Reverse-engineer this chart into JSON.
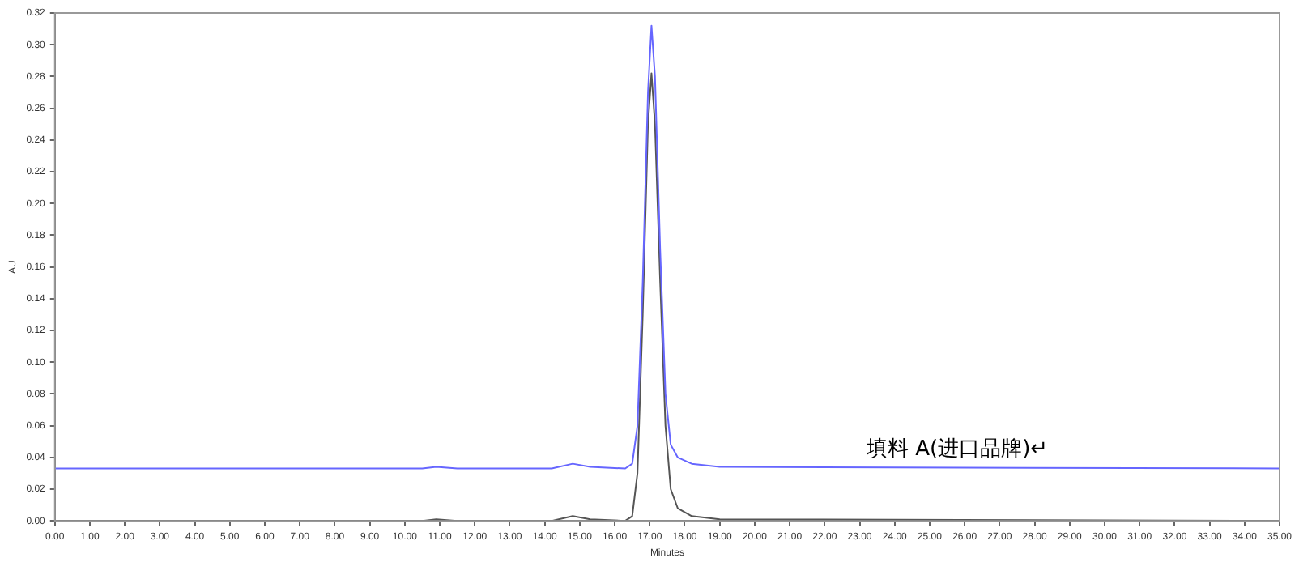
{
  "chart_data": {
    "type": "line",
    "xlabel": "Minutes",
    "ylabel": "AU",
    "xlim": [
      0,
      35
    ],
    "ylim": [
      0,
      0.32
    ],
    "xticks": [
      {
        "value": 0,
        "label": "0.00"
      },
      {
        "value": 1,
        "label": "1.00"
      },
      {
        "value": 2,
        "label": "2.00"
      },
      {
        "value": 3,
        "label": "3.00"
      },
      {
        "value": 4,
        "label": "4.00"
      },
      {
        "value": 5,
        "label": "5.00"
      },
      {
        "value": 6,
        "label": "6.00"
      },
      {
        "value": 7,
        "label": "7.00"
      },
      {
        "value": 8,
        "label": "8.00"
      },
      {
        "value": 9,
        "label": "9.00"
      },
      {
        "value": 10,
        "label": "10.00"
      },
      {
        "value": 11,
        "label": "11.00"
      },
      {
        "value": 12,
        "label": "12.00"
      },
      {
        "value": 13,
        "label": "13.00"
      },
      {
        "value": 14,
        "label": "14.00"
      },
      {
        "value": 15,
        "label": "15.00"
      },
      {
        "value": 16,
        "label": "16.00"
      },
      {
        "value": 17,
        "label": "17.00"
      },
      {
        "value": 18,
        "label": "18.00"
      },
      {
        "value": 19,
        "label": "19.00"
      },
      {
        "value": 20,
        "label": "20.00"
      },
      {
        "value": 21,
        "label": "21.00"
      },
      {
        "value": 22,
        "label": "22.00"
      },
      {
        "value": 23,
        "label": "23.00"
      },
      {
        "value": 24,
        "label": "24.00"
      },
      {
        "value": 25,
        "label": "25.00"
      },
      {
        "value": 26,
        "label": "26.00"
      },
      {
        "value": 27,
        "label": "27.00"
      },
      {
        "value": 28,
        "label": "28.00"
      },
      {
        "value": 29,
        "label": "29.00"
      },
      {
        "value": 30,
        "label": "30.00"
      },
      {
        "value": 31,
        "label": "31.00"
      },
      {
        "value": 32,
        "label": "32.00"
      },
      {
        "value": 33,
        "label": "33.00"
      },
      {
        "value": 34,
        "label": "34.00"
      },
      {
        "value": 35,
        "label": "35.00"
      }
    ],
    "yticks": [
      {
        "value": 0,
        "label": "0.00"
      },
      {
        "value": 0.02,
        "label": "0.02"
      },
      {
        "value": 0.04,
        "label": "0.04"
      },
      {
        "value": 0.06,
        "label": "0.06"
      },
      {
        "value": 0.08,
        "label": "0.08"
      },
      {
        "value": 0.1,
        "label": "0.10"
      },
      {
        "value": 0.12,
        "label": "0.12"
      },
      {
        "value": 0.14,
        "label": "0.14"
      },
      {
        "value": 0.16,
        "label": "0.16"
      },
      {
        "value": 0.18,
        "label": "0.18"
      },
      {
        "value": 0.2,
        "label": "0.20"
      },
      {
        "value": 0.22,
        "label": "0.22"
      },
      {
        "value": 0.24,
        "label": "0.24"
      },
      {
        "value": 0.26,
        "label": "0.26"
      },
      {
        "value": 0.28,
        "label": "0.28"
      },
      {
        "value": 0.3,
        "label": "0.30"
      },
      {
        "value": 0.32,
        "label": "0.32"
      }
    ],
    "marker": "none",
    "legend": false,
    "grid": false,
    "series": [
      {
        "name": "填料 A(进口品牌)↵",
        "color": "#6666ff",
        "x": [
          0,
          10.5,
          10.9,
          11.5,
          14.2,
          14.8,
          15.3,
          16.3,
          16.5,
          16.65,
          16.8,
          16.95,
          17.05,
          17.15,
          17.3,
          17.45,
          17.6,
          17.8,
          18.2,
          19,
          35
        ],
        "values": [
          0.033,
          0.033,
          0.034,
          0.033,
          0.033,
          0.036,
          0.034,
          0.033,
          0.036,
          0.06,
          0.15,
          0.27,
          0.312,
          0.28,
          0.17,
          0.08,
          0.048,
          0.04,
          0.036,
          0.034,
          0.033
        ]
      },
      {
        "color": "#555555",
        "x": [
          0,
          10.5,
          10.9,
          11.5,
          14.2,
          14.8,
          15.3,
          16.3,
          16.5,
          16.65,
          16.8,
          16.95,
          17.05,
          17.15,
          17.3,
          17.45,
          17.6,
          17.8,
          18.2,
          19,
          35
        ],
        "values": [
          0,
          0,
          0.001,
          0,
          0,
          0.003,
          0.001,
          0,
          0.003,
          0.03,
          0.13,
          0.25,
          0.282,
          0.25,
          0.15,
          0.06,
          0.02,
          0.008,
          0.003,
          0.001,
          0
        ]
      }
    ]
  }
}
